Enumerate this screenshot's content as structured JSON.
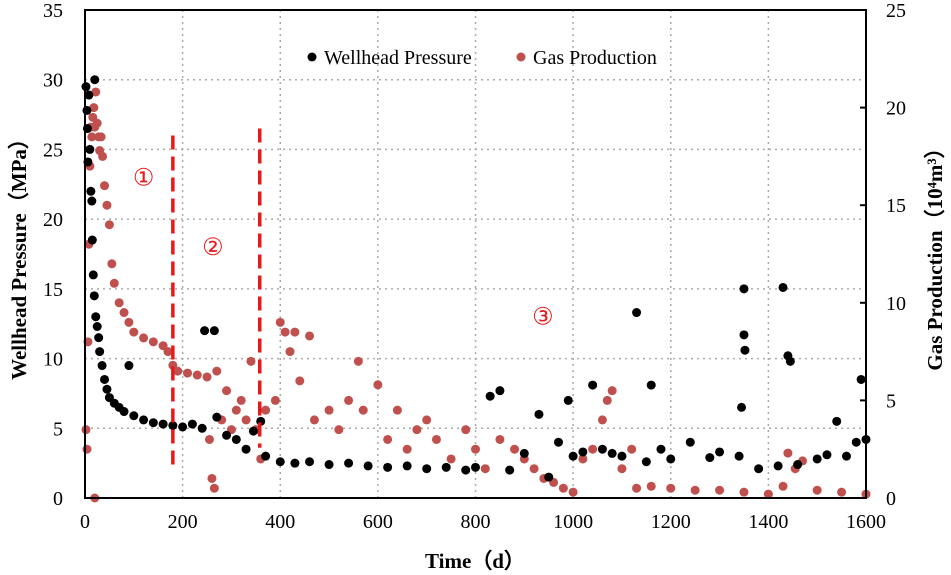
{
  "chart_data": {
    "type": "scatter",
    "xlabel": "Time（d）",
    "ylabel_left": "Wellhead Pressure（MPa）",
    "ylabel_right": "Gas Production（10⁴m³）",
    "xlim": [
      0,
      1600
    ],
    "ylim_left": [
      0,
      35
    ],
    "ylim_right": [
      0,
      25
    ],
    "x_ticks": [
      0,
      200,
      400,
      600,
      800,
      1000,
      1200,
      1400,
      1600
    ],
    "y_left_ticks": [
      0,
      5,
      10,
      15,
      20,
      25,
      30,
      35
    ],
    "y_right_ticks": [
      0,
      5,
      10,
      15,
      20,
      25
    ],
    "grid": true,
    "legend_position": "top-center",
    "colors": {
      "pressure": "#000000",
      "gas": "#c0504d",
      "divider": "#e8191b"
    },
    "series": [
      {
        "name": "Wellhead Pressure",
        "axis": "left",
        "points": [
          [
            2,
            29.5
          ],
          [
            4,
            27.8
          ],
          [
            5,
            26.5
          ],
          [
            6,
            24.1
          ],
          [
            8,
            28.9
          ],
          [
            10,
            25
          ],
          [
            12,
            22
          ],
          [
            14,
            21.3
          ],
          [
            15,
            18.5
          ],
          [
            17,
            16
          ],
          [
            19,
            14.5
          ],
          [
            20,
            30
          ],
          [
            22,
            13
          ],
          [
            25,
            12.3
          ],
          [
            28,
            11.5
          ],
          [
            30,
            10.5
          ],
          [
            35,
            9.5
          ],
          [
            40,
            8.5
          ],
          [
            45,
            7.8
          ],
          [
            50,
            7.2
          ],
          [
            60,
            6.8
          ],
          [
            70,
            6.5
          ],
          [
            80,
            6.2
          ],
          [
            90,
            9.5
          ],
          [
            100,
            5.9
          ],
          [
            120,
            5.6
          ],
          [
            140,
            5.4
          ],
          [
            160,
            5.3
          ],
          [
            180,
            5.2
          ],
          [
            200,
            5.1
          ],
          [
            220,
            5.3
          ],
          [
            240,
            5.0
          ],
          [
            245,
            12
          ],
          [
            265,
            12
          ],
          [
            270,
            5.8
          ],
          [
            290,
            4.5
          ],
          [
            310,
            4.2
          ],
          [
            330,
            3.5
          ],
          [
            345,
            4.8
          ],
          [
            360,
            5.5
          ],
          [
            370,
            3
          ],
          [
            400,
            2.6
          ],
          [
            430,
            2.5
          ],
          [
            460,
            2.6
          ],
          [
            500,
            2.4
          ],
          [
            540,
            2.5
          ],
          [
            580,
            2.3
          ],
          [
            620,
            2.2
          ],
          [
            660,
            2.3
          ],
          [
            700,
            2.1
          ],
          [
            740,
            2.2
          ],
          [
            780,
            2.0
          ],
          [
            800,
            2.2
          ],
          [
            830,
            7.3
          ],
          [
            850,
            7.7
          ],
          [
            870,
            2.0
          ],
          [
            900,
            3.2
          ],
          [
            930,
            6
          ],
          [
            950,
            1.5
          ],
          [
            970,
            4
          ],
          [
            990,
            7
          ],
          [
            1000,
            3
          ],
          [
            1020,
            3.3
          ],
          [
            1040,
            8.1
          ],
          [
            1060,
            3.5
          ],
          [
            1080,
            3.2
          ],
          [
            1100,
            3
          ],
          [
            1130,
            13.3
          ],
          [
            1150,
            2.6
          ],
          [
            1160,
            8.1
          ],
          [
            1180,
            3.5
          ],
          [
            1200,
            2.8
          ],
          [
            1240,
            4
          ],
          [
            1280,
            2.9
          ],
          [
            1300,
            3.3
          ],
          [
            1340,
            3.0
          ],
          [
            1345,
            6.5
          ],
          [
            1350,
            15
          ],
          [
            1350,
            11.7
          ],
          [
            1352,
            10.6
          ],
          [
            1380,
            2.1
          ],
          [
            1420,
            2.3
          ],
          [
            1430,
            15.1
          ],
          [
            1440,
            10.2
          ],
          [
            1445,
            9.8
          ],
          [
            1460,
            2.4
          ],
          [
            1500,
            2.8
          ],
          [
            1520,
            3.1
          ],
          [
            1540,
            5.5
          ],
          [
            1560,
            3
          ],
          [
            1580,
            4
          ],
          [
            1590,
            8.5
          ],
          [
            1600,
            4.2
          ]
        ]
      },
      {
        "name": "Gas Production",
        "axis": "right",
        "points": [
          [
            2,
            3.5
          ],
          [
            4,
            2.5
          ],
          [
            6,
            8
          ],
          [
            8,
            13
          ],
          [
            10,
            17
          ],
          [
            12,
            19
          ],
          [
            14,
            18.5
          ],
          [
            16,
            19.5
          ],
          [
            18,
            20
          ],
          [
            20,
            19
          ],
          [
            20,
            0
          ],
          [
            22,
            20.8
          ],
          [
            25,
            19.2
          ],
          [
            28,
            18.5
          ],
          [
            30,
            17.8
          ],
          [
            33,
            18.5
          ],
          [
            36,
            17.5
          ],
          [
            40,
            16
          ],
          [
            45,
            15
          ],
          [
            50,
            14
          ],
          [
            55,
            12
          ],
          [
            60,
            11
          ],
          [
            70,
            10
          ],
          [
            80,
            9.5
          ],
          [
            90,
            9
          ],
          [
            100,
            8.5
          ],
          [
            120,
            8.2
          ],
          [
            140,
            8
          ],
          [
            160,
            7.8
          ],
          [
            170,
            7.5
          ],
          [
            180,
            6.8
          ],
          [
            190,
            6.5
          ],
          [
            210,
            6.4
          ],
          [
            230,
            6.3
          ],
          [
            250,
            6.2
          ],
          [
            255,
            3
          ],
          [
            260,
            1
          ],
          [
            265,
            0.5
          ],
          [
            270,
            6.5
          ],
          [
            280,
            4
          ],
          [
            290,
            5.5
          ],
          [
            300,
            3.5
          ],
          [
            310,
            4.5
          ],
          [
            320,
            5
          ],
          [
            330,
            4
          ],
          [
            340,
            7
          ],
          [
            350,
            3.5
          ],
          [
            360,
            2
          ],
          [
            370,
            4.5
          ],
          [
            390,
            5
          ],
          [
            400,
            9
          ],
          [
            410,
            8.5
          ],
          [
            420,
            7.5
          ],
          [
            430,
            8.5
          ],
          [
            440,
            6
          ],
          [
            460,
            8.3
          ],
          [
            470,
            4
          ],
          [
            500,
            4.5
          ],
          [
            520,
            3.5
          ],
          [
            540,
            5
          ],
          [
            560,
            7
          ],
          [
            570,
            4.5
          ],
          [
            600,
            5.8
          ],
          [
            620,
            3
          ],
          [
            640,
            4.5
          ],
          [
            660,
            2.5
          ],
          [
            680,
            3.5
          ],
          [
            700,
            4
          ],
          [
            720,
            3
          ],
          [
            750,
            2
          ],
          [
            780,
            3.5
          ],
          [
            800,
            2.5
          ],
          [
            820,
            1.5
          ],
          [
            850,
            3
          ],
          [
            880,
            2.5
          ],
          [
            900,
            2
          ],
          [
            920,
            1.5
          ],
          [
            940,
            1
          ],
          [
            960,
            0.8
          ],
          [
            980,
            0.5
          ],
          [
            1000,
            0.3
          ],
          [
            1020,
            2
          ],
          [
            1040,
            2.5
          ],
          [
            1060,
            4
          ],
          [
            1070,
            5
          ],
          [
            1080,
            5.5
          ],
          [
            1100,
            1.5
          ],
          [
            1120,
            2.5
          ],
          [
            1130,
            0.5
          ],
          [
            1160,
            0.6
          ],
          [
            1200,
            0.5
          ],
          [
            1250,
            0.4
          ],
          [
            1300,
            0.4
          ],
          [
            1350,
            0.3
          ],
          [
            1400,
            0.2
          ],
          [
            1430,
            0.6
          ],
          [
            1440,
            2.3
          ],
          [
            1455,
            1.5
          ],
          [
            1470,
            1.9
          ],
          [
            1500,
            0.4
          ],
          [
            1550,
            0.3
          ],
          [
            1600,
            0.2
          ]
        ]
      }
    ],
    "dividers": [
      {
        "x": 180,
        "y_from": 2.4,
        "y_to": 26
      },
      {
        "x": 358,
        "y_from": 3.6,
        "y_to": 26.5
      }
    ],
    "annotations": [
      {
        "text": "①",
        "x": 120,
        "y": 23
      },
      {
        "text": "②",
        "x": 262,
        "y": 18
      },
      {
        "text": "③",
        "x": 938,
        "y": 13
      }
    ]
  }
}
